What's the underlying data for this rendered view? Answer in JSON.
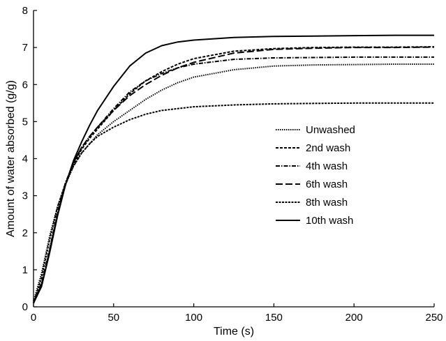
{
  "chart_data": {
    "type": "line",
    "title": "",
    "xlabel": "Time (s)",
    "ylabel": "Amount of water absorbed (g/g)",
    "xlim": [
      0,
      250
    ],
    "ylim": [
      0,
      8
    ],
    "xticks": [
      0,
      50,
      100,
      150,
      200,
      250
    ],
    "yticks": [
      0,
      1,
      2,
      3,
      4,
      5,
      6,
      7,
      8
    ],
    "grid": false,
    "legend_position": "right",
    "x": [
      0,
      5,
      10,
      15,
      20,
      25,
      30,
      35,
      40,
      50,
      60,
      70,
      80,
      90,
      100,
      125,
      150,
      175,
      200,
      225,
      250
    ],
    "series": [
      {
        "name": "Unwashed",
        "dash": "dotted",
        "values": [
          0.15,
          0.9,
          1.9,
          2.7,
          3.3,
          3.8,
          4.15,
          4.4,
          4.65,
          5.0,
          5.3,
          5.6,
          5.85,
          6.05,
          6.2,
          6.4,
          6.5,
          6.53,
          6.54,
          6.55,
          6.55
        ]
      },
      {
        "name": "2nd wash",
        "dash": "short-dash",
        "values": [
          0.1,
          0.6,
          1.5,
          2.5,
          3.3,
          3.85,
          4.25,
          4.55,
          4.8,
          5.3,
          5.75,
          6.1,
          6.35,
          6.55,
          6.7,
          6.9,
          6.97,
          7.0,
          7.01,
          7.01,
          7.02
        ]
      },
      {
        "name": "4th wash",
        "dash": "dash-dot",
        "values": [
          0.1,
          0.65,
          1.55,
          2.55,
          3.35,
          3.9,
          4.3,
          4.6,
          4.85,
          5.35,
          5.8,
          6.1,
          6.3,
          6.45,
          6.55,
          6.68,
          6.72,
          6.73,
          6.74,
          6.74,
          6.74
        ]
      },
      {
        "name": "6th wash",
        "dash": "long-dash",
        "values": [
          0.1,
          0.6,
          1.5,
          2.5,
          3.3,
          3.9,
          4.3,
          4.6,
          4.85,
          5.3,
          5.7,
          6.0,
          6.25,
          6.45,
          6.6,
          6.85,
          6.95,
          6.98,
          7.0,
          7.0,
          7.01
        ]
      },
      {
        "name": "8th wash",
        "dash": "fine-dash",
        "values": [
          0.1,
          0.8,
          1.8,
          2.7,
          3.35,
          3.8,
          4.15,
          4.4,
          4.6,
          4.85,
          5.05,
          5.2,
          5.3,
          5.35,
          5.4,
          5.45,
          5.48,
          5.49,
          5.5,
          5.5,
          5.5
        ]
      },
      {
        "name": "10th wash",
        "dash": "solid",
        "values": [
          0.1,
          0.55,
          1.45,
          2.45,
          3.3,
          3.95,
          4.45,
          4.9,
          5.3,
          5.95,
          6.5,
          6.85,
          7.05,
          7.15,
          7.2,
          7.27,
          7.3,
          7.31,
          7.32,
          7.33,
          7.33
        ]
      }
    ]
  }
}
